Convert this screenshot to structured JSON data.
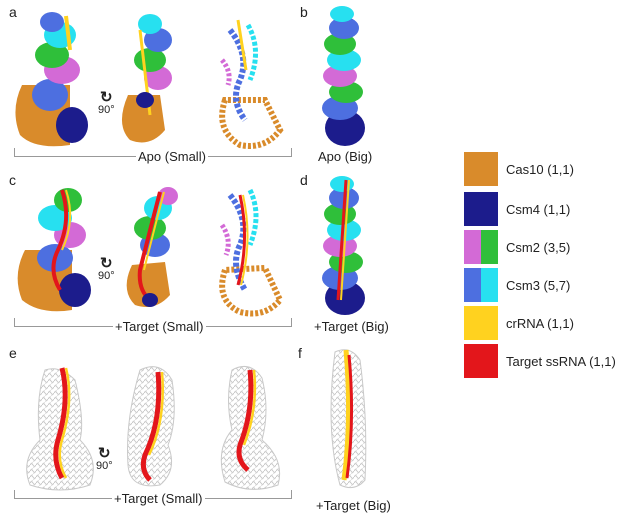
{
  "panels": {
    "a": {
      "letter": "a",
      "caption": "Apo (Small)",
      "rotation": "90°"
    },
    "b": {
      "letter": "b",
      "caption": "Apo (Big)"
    },
    "c": {
      "letter": "c",
      "caption": "+Target (Small)",
      "rotation": "90°"
    },
    "d": {
      "letter": "d",
      "caption": "+Target (Big)"
    },
    "e": {
      "letter": "e",
      "caption": "+Target (Small)",
      "rotation": "90°"
    },
    "f": {
      "letter": "f",
      "caption": "+Target (Big)"
    }
  },
  "legend": [
    {
      "label": "Cas10 (1,1)",
      "colors": [
        "#d98b2b"
      ]
    },
    {
      "label": "Csm4 (1,1)",
      "colors": [
        "#1c1c8c"
      ]
    },
    {
      "label": "Csm2 (3,5)",
      "colors": [
        "#d36ad6",
        "#2fbf3a"
      ]
    },
    {
      "label": "Csm3 (5,7)",
      "colors": [
        "#4d6fe0",
        "#27e0f0"
      ]
    },
    {
      "label": "crRNA (1,1)",
      "colors": [
        "#ffd21f"
      ]
    },
    {
      "label": "Target ssRNA (1,1)",
      "colors": [
        "#e3161b"
      ]
    }
  ],
  "colors": {
    "cas10": "#d98b2b",
    "csm4": "#1c1c8c",
    "csm2_a": "#d36ad6",
    "csm2_b": "#2fbf3a",
    "csm3_a": "#4d6fe0",
    "csm3_b": "#27e0f0",
    "crrna": "#ffd21f",
    "target": "#e3161b",
    "density": "#bdbdbd"
  }
}
